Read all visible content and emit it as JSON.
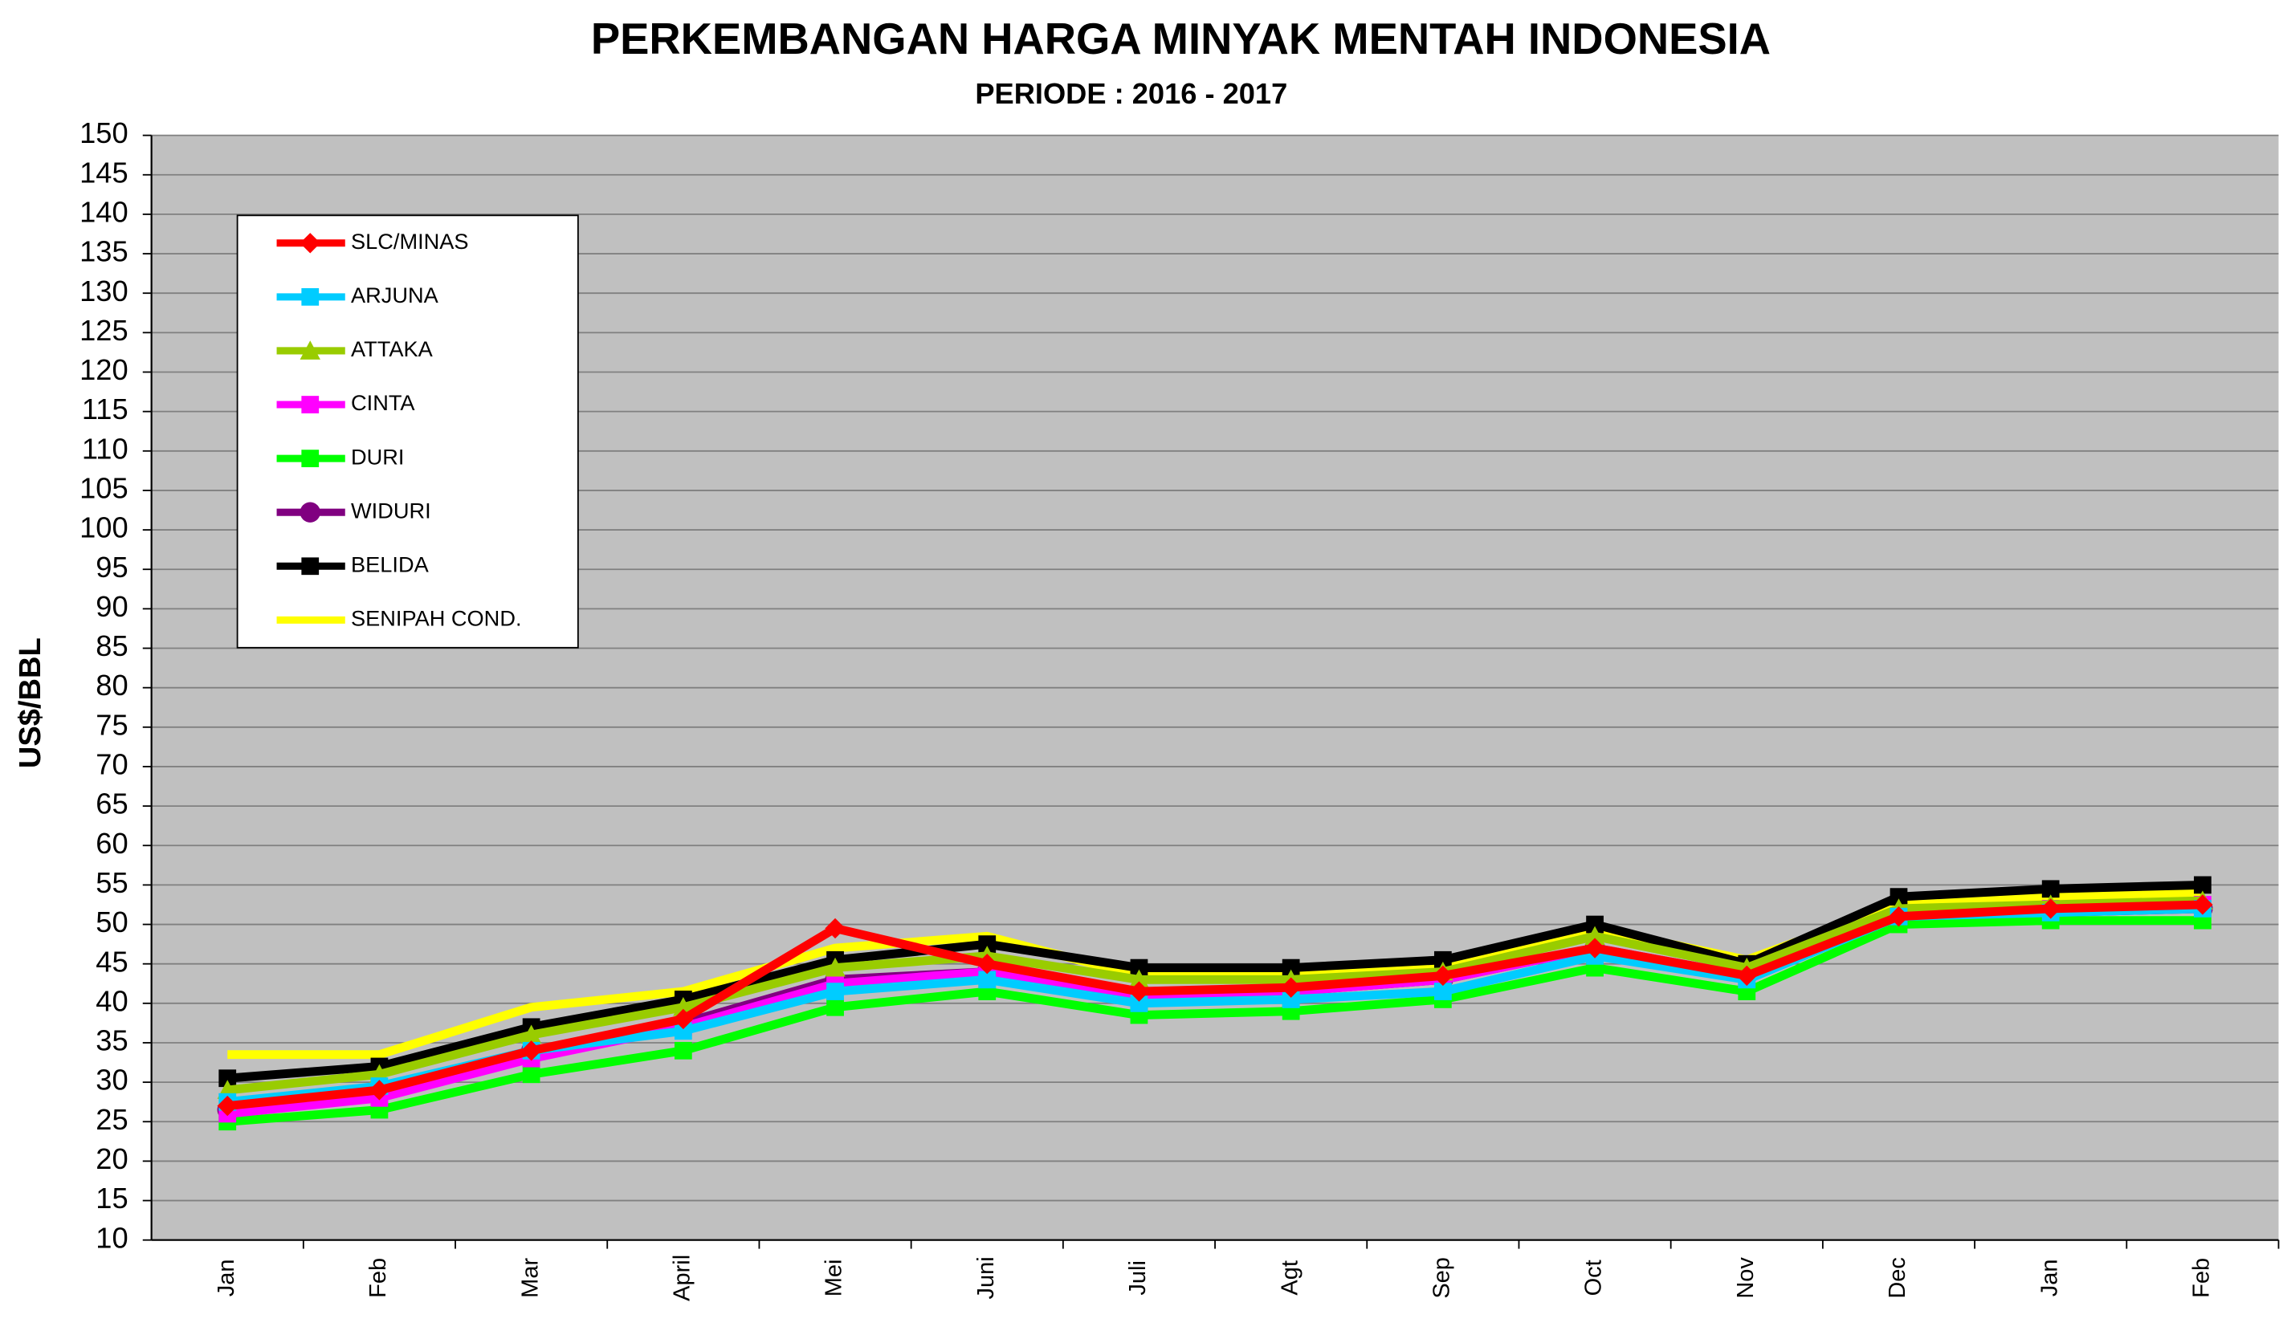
{
  "chart_data": {
    "type": "line",
    "title": "PERKEMBANGAN HARGA MINYAK MENTAH INDONESIA",
    "subtitle": "PERIODE : 2016 - 2017",
    "y_label": "US$/BBL",
    "categories": [
      "Jan",
      "Feb",
      "Mar",
      "April",
      "Mei",
      "Juni",
      "Juli",
      "Agt",
      "Sep",
      "Oct",
      "Nov",
      "Dec",
      "Jan",
      "Feb"
    ],
    "ylim": [
      10,
      150
    ],
    "yticks": [
      10,
      15,
      20,
      25,
      30,
      35,
      40,
      45,
      50,
      55,
      60,
      65,
      70,
      75,
      80,
      85,
      90,
      95,
      100,
      105,
      110,
      115,
      120,
      125,
      130,
      135,
      140,
      145,
      150
    ],
    "grid": true,
    "legend": "upper left",
    "series": [
      {
        "name": "SLC/MINAS",
        "color": "#ff0000",
        "marker": "diamond",
        "values": [
          27,
          29,
          34,
          38,
          49.5,
          45,
          41.5,
          42,
          43.5,
          47,
          43.5,
          51,
          52,
          52.5
        ]
      },
      {
        "name": "ARJUNA",
        "color": "#00ccff",
        "marker": "square",
        "values": [
          27.5,
          29.5,
          34,
          36.5,
          41.5,
          43,
          40,
          40.5,
          41.5,
          46,
          43,
          51,
          51.5,
          52
        ]
      },
      {
        "name": "ATTAKA",
        "color": "#99cc00",
        "marker": "triangle",
        "values": [
          29,
          31,
          36,
          39.5,
          44.5,
          46,
          43,
          43,
          44,
          48.5,
          44.5,
          52,
          52.5,
          53
        ]
      },
      {
        "name": "CINTA",
        "color": "#ff00ff",
        "marker": "square",
        "values": [
          26,
          28,
          33,
          37,
          42.5,
          44,
          41,
          41.5,
          43,
          47,
          43.5,
          51,
          52,
          52.5
        ]
      },
      {
        "name": "DURI",
        "color": "#00ff00",
        "marker": "square",
        "values": [
          25,
          26.5,
          31,
          34,
          39.5,
          41.5,
          38.5,
          39,
          40.5,
          44.5,
          41.5,
          50,
          50.5,
          50.5
        ]
      },
      {
        "name": "WIDURI",
        "color": "#800080",
        "marker": "circle",
        "values": [
          26.5,
          29,
          34,
          37.5,
          43,
          44,
          41.5,
          41.5,
          43,
          47,
          43.5,
          51,
          51.5,
          52
        ]
      },
      {
        "name": "BELIDA",
        "color": "#000000",
        "marker": "square",
        "values": [
          30.5,
          32,
          37,
          40.5,
          45.5,
          47.5,
          44.5,
          44.5,
          45.5,
          50,
          45,
          53.5,
          54.5,
          55
        ]
      },
      {
        "name": "SENIPAH COND.",
        "color": "#ffff00",
        "marker": "none",
        "values": [
          33.5,
          33.5,
          39.5,
          41.5,
          47,
          48.5,
          43.5,
          43.5,
          44.5,
          49.5,
          45.5,
          52.5,
          53.5,
          54
        ]
      }
    ]
  }
}
